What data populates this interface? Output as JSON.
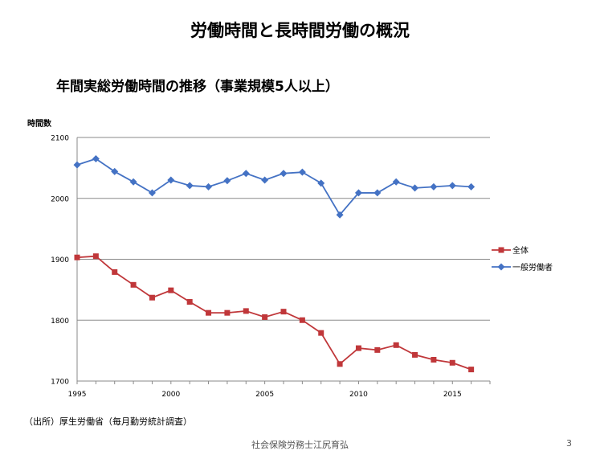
{
  "slide": {
    "title": "労働時間と長時間労働の概況",
    "source": "（出所）厚生労働省（毎月勤労統計調査）",
    "footer": "社会保険労務士江尻育弘",
    "page_number": "3"
  },
  "chart_data": {
    "type": "line",
    "title": "年間実総労働時間の推移（事業規模5人以上）",
    "ylabel": "時間数",
    "xlabel": "",
    "xlim": [
      1995,
      2017
    ],
    "ylim": [
      1700,
      2100
    ],
    "y_ticks": [
      1700,
      1800,
      1900,
      2000,
      2100
    ],
    "x_ticks": [
      1995,
      2000,
      2005,
      2010,
      2015
    ],
    "x": [
      1995,
      1996,
      1997,
      1998,
      1999,
      2000,
      2001,
      2002,
      2003,
      2004,
      2005,
      2006,
      2007,
      2008,
      2009,
      2010,
      2011,
      2012,
      2013,
      2014,
      2015,
      2016
    ],
    "legend_position": "right",
    "grid": "horizontal",
    "series": [
      {
        "name": "全体",
        "color": "#c0373a",
        "marker": "square",
        "values": [
          1903,
          1905,
          1879,
          1858,
          1837,
          1849,
          1830,
          1812,
          1812,
          1815,
          1805,
          1814,
          1800,
          1779,
          1728,
          1754,
          1751,
          1759,
          1743,
          1735,
          1730,
          1719
        ]
      },
      {
        "name": "一般労働者",
        "color": "#4472c4",
        "marker": "diamond",
        "values": [
          2055,
          2065,
          2044,
          2027,
          2009,
          2030,
          2021,
          2019,
          2029,
          2041,
          2030,
          2041,
          2043,
          2025,
          1973,
          2009,
          2009,
          2027,
          2017,
          2019,
          2021,
          2019
        ]
      }
    ]
  }
}
